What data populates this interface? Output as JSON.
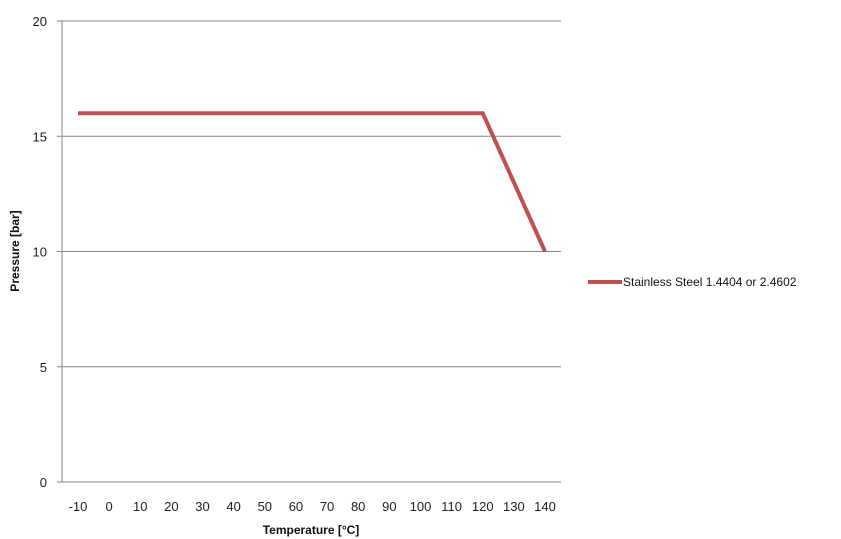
{
  "chart_data": {
    "type": "line",
    "title": "",
    "xlabel": "Temperature [°C]",
    "ylabel": "Pressure [bar]",
    "x_ticks": [
      "-10",
      "0",
      "10",
      "20",
      "30",
      "40",
      "50",
      "60",
      "70",
      "80",
      "90",
      "100",
      "110",
      "120",
      "130",
      "140"
    ],
    "y_ticks": [
      0,
      5,
      10,
      15,
      20
    ],
    "ylim": [
      0,
      20
    ],
    "xlim": [
      -10,
      140
    ],
    "grid": "horizontal",
    "legend_position": "right",
    "series": [
      {
        "name": "Stainless Steel 1.4404 or 2.4602",
        "color": "#c0504d",
        "x": [
          -10,
          120,
          140
        ],
        "y": [
          16,
          16,
          10
        ]
      }
    ]
  }
}
